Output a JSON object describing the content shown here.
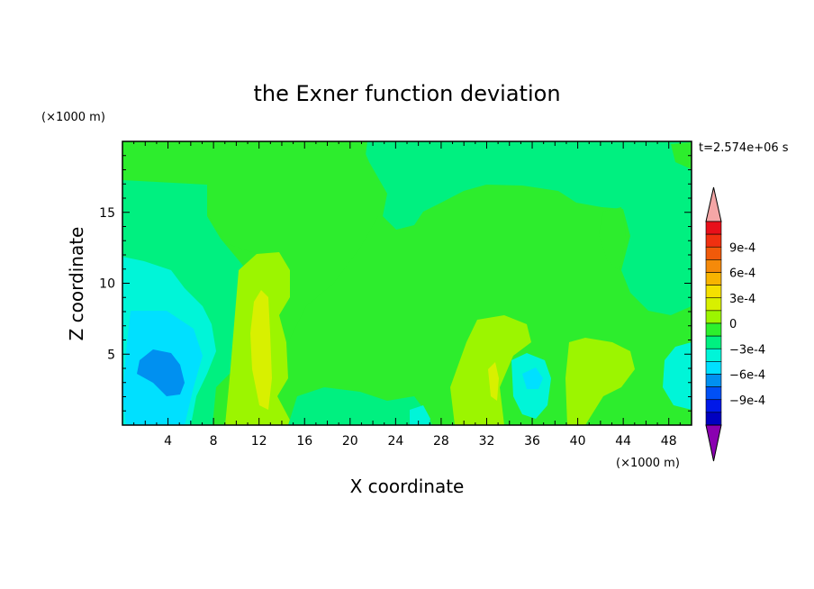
{
  "chart_data": {
    "type": "heatmap",
    "title": "the Exner function deviation",
    "xlabel": "X coordinate",
    "ylabel": "Z coordinate",
    "x_unit": "(×1000 m)",
    "z_unit": "(×1000 m)",
    "time_label": "t=2.574e+06 s",
    "xlim": [
      0,
      50
    ],
    "ylim": [
      0,
      20
    ],
    "x_ticks": [
      4,
      8,
      12,
      16,
      20,
      24,
      28,
      32,
      36,
      40,
      44,
      48
    ],
    "y_ticks": [
      5,
      10,
      15
    ],
    "colorbar": {
      "labels": [
        "9e-4",
        "6e-4",
        "3e-4",
        "0",
        "−3e-4",
        "−6e-4",
        "−9e-4"
      ],
      "levels": [
        0.0012,
        0.00105,
        0.0009,
        0.00075,
        0.0006,
        0.00045,
        0.0003,
        0.00015,
        0,
        -0.00015,
        -0.0003,
        -0.00045,
        -0.0006,
        -0.00075,
        -0.0009,
        -0.00105,
        -0.0012
      ],
      "colors": [
        "#f4a6a6",
        "#e8101a",
        "#f03010",
        "#f05a0a",
        "#f58a0a",
        "#f8b400",
        "#f5e000",
        "#d8f000",
        "#9cf500",
        "#2df02d",
        "#00f080",
        "#00f5d8",
        "#00e0ff",
        "#0090f0",
        "#0050f5",
        "#0018e8",
        "#0000c0",
        "#000080",
        "#500090",
        "#8a00b0"
      ],
      "min_color": "#8a00b0",
      "max_color": "#f4a6a6"
    },
    "background_color": "#2ded2d"
  }
}
